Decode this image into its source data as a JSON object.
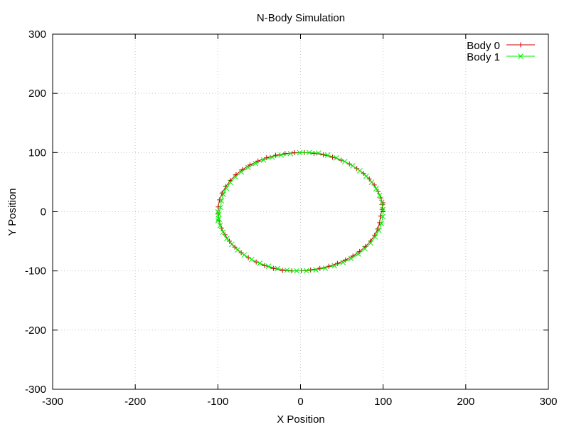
{
  "chart_data": {
    "type": "line",
    "title": "N-Body Simulation",
    "xlabel": "X Position",
    "ylabel": "Y Position",
    "xlim": [
      -300,
      300
    ],
    "ylim": [
      -300,
      300
    ],
    "xticks": [
      -300,
      -200,
      -100,
      0,
      100,
      200,
      300
    ],
    "yticks": [
      -300,
      -200,
      -100,
      0,
      100,
      200,
      300
    ],
    "grid": true,
    "legend_position": "top-right",
    "series": [
      {
        "name": "Body 0",
        "color": "#cc0000",
        "marker": "plus",
        "x": [
          100.0,
          99.31,
          97.25,
          93.86,
          89.18,
          83.28,
          76.24,
          68.15,
          59.13,
          49.29,
          38.78,
          27.74,
          16.32,
          4.68,
          -7.04,
          -18.67,
          -30.06,
          -41.04,
          -51.47,
          -61.19,
          -70.07,
          -77.98,
          -84.82,
          -90.48,
          -94.89,
          -97.98,
          -99.7,
          -99.75,
          -98.38,
          -95.61,
          -91.48,
          -86.07,
          -79.47,
          -71.78,
          -63.12,
          -53.64,
          -43.48,
          -32.8,
          -21.76,
          -10.53,
          0.86,
          12.22,
          23.41,
          34.27,
          44.66,
          54.43,
          63.45,
          71.6,
          78.75,
          84.82,
          89.72,
          93.37,
          95.73,
          96.78,
          98.71,
          99.82
        ],
        "y": [
          0.0,
          11.74,
          23.28,
          34.51,
          45.24,
          55.35,
          64.67,
          73.1,
          80.64,
          87.0,
          92.17,
          96.08,
          98.66,
          99.89,
          99.75,
          98.24,
          95.38,
          91.21,
          85.74,
          79.1,
          71.35,
          62.59,
          52.97,
          42.59,
          31.57,
          20.04,
          8.13,
          -3.92,
          -15.88,
          -27.6,
          -38.91,
          -49.72,
          -59.85,
          -69.17,
          -77.55,
          -84.85,
          -90.96,
          -95.78,
          -99.14,
          -100.0,
          -99.63,
          -98.26,
          -95.72,
          -92.06,
          -87.31,
          -81.53,
          -74.78,
          -67.14,
          -58.68,
          -49.49,
          -39.67,
          -29.3,
          -18.47,
          -7.31,
          4.0,
          15.0
        ]
      },
      {
        "name": "Body 1",
        "color": "#00ee00",
        "marker": "cross",
        "x": [
          -100.0,
          -99.31,
          -97.25,
          -93.86,
          -89.18,
          -83.28,
          -76.24,
          -68.15,
          -59.13,
          -49.29,
          -38.78,
          -27.74,
          -16.32,
          -4.68,
          7.04,
          18.67,
          30.06,
          41.04,
          51.47,
          61.19,
          70.07,
          77.98,
          84.82,
          90.48,
          94.89,
          97.98,
          99.7,
          99.75,
          98.38,
          95.61,
          91.48,
          86.07,
          79.47,
          71.78,
          63.12,
          53.64,
          43.48,
          32.8,
          21.76,
          10.53,
          -0.86,
          -12.22,
          -23.41,
          -34.27,
          -44.66,
          -54.43,
          -63.45,
          -71.6,
          -78.75,
          -84.82,
          -89.72,
          -93.37,
          -95.73,
          -96.78,
          -98.71,
          -99.82
        ],
        "y": [
          0.0,
          -11.74,
          -23.28,
          -34.51,
          -45.24,
          -55.35,
          -64.67,
          -73.1,
          -80.64,
          -87.0,
          -92.17,
          -96.08,
          -98.66,
          -99.89,
          -99.75,
          -98.24,
          -95.38,
          -91.21,
          -85.74,
          -79.1,
          -71.35,
          -62.59,
          -52.97,
          -42.59,
          -31.57,
          -20.04,
          -8.13,
          3.92,
          15.88,
          27.6,
          38.91,
          49.72,
          59.85,
          69.17,
          77.55,
          84.85,
          90.96,
          95.78,
          99.14,
          100.0,
          99.63,
          98.26,
          95.72,
          92.06,
          87.31,
          81.53,
          74.78,
          67.14,
          58.68,
          49.49,
          39.67,
          29.3,
          18.47,
          7.31,
          -4.0,
          -15.0
        ]
      }
    ]
  }
}
